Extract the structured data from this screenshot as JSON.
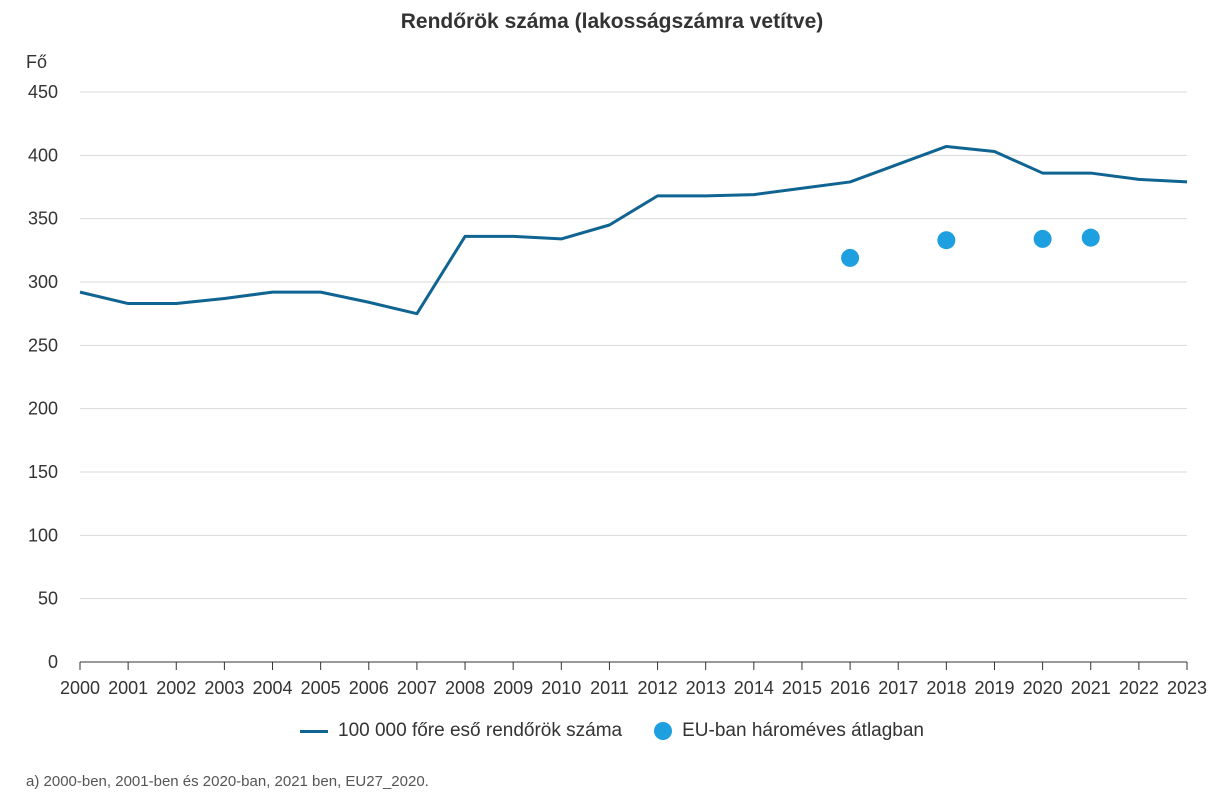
{
  "chart_data": {
    "type": "line",
    "title": "Rendőrök száma (lakosságszámra vetítve)",
    "ylabel": "Fő",
    "xlabel": "",
    "ylim": [
      0,
      450
    ],
    "yticks": [
      0,
      50,
      100,
      150,
      200,
      250,
      300,
      350,
      400,
      450
    ],
    "categories": [
      "2000",
      "2001",
      "2002",
      "2003",
      "2004",
      "2005",
      "2006",
      "2007",
      "2008",
      "2009",
      "2010",
      "2011",
      "2012",
      "2013",
      "2014",
      "2015",
      "2016",
      "2017",
      "2018",
      "2019",
      "2020",
      "2021",
      "2022",
      "2023"
    ],
    "grid": true,
    "legend_position": "bottom",
    "series": [
      {
        "name": "100 000 főre eső rendőrök száma",
        "type": "line",
        "color": "#0f6491",
        "values": [
          292,
          283,
          283,
          287,
          292,
          292,
          284,
          275,
          336,
          336,
          334,
          345,
          368,
          368,
          369,
          374,
          379,
          393,
          407,
          403,
          386,
          386,
          381,
          379
        ]
      },
      {
        "name": "EU-ban hároméves átlagban",
        "type": "scatter",
        "color": "#1e9fe0",
        "points": [
          {
            "x": "2016",
            "y": 319
          },
          {
            "x": "2018",
            "y": 333
          },
          {
            "x": "2020",
            "y": 334
          },
          {
            "x": "2021",
            "y": 335
          }
        ]
      }
    ],
    "footnote": "a) 2000-ben, 2001-ben és 2020-ban, 2021 ben, EU27_2020."
  }
}
